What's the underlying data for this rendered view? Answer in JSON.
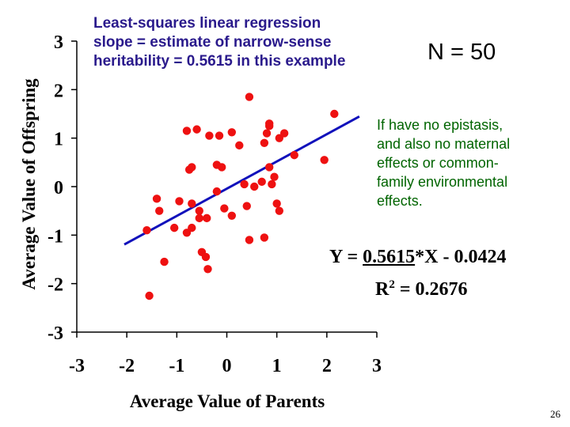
{
  "annotation": {
    "line1": "Least-squares linear regression",
    "line2": "slope = estimate of narrow-sense",
    "line3": "heritability = 0.5615 in this example"
  },
  "sample_size_label": "N = 50",
  "note": {
    "line1": "If have no epistasis,",
    "line2": "and also no maternal",
    "line3": "effects or common-",
    "line4": "family environmental",
    "line5": "effects."
  },
  "equation": {
    "prefix": "Y = ",
    "slope": "0.5615",
    "suffix": "*X - 0.0424",
    "r2_label": "R",
    "r2_exp": "2",
    "r2_value": " = 0.2676"
  },
  "page_number": "26",
  "colors": {
    "points": "#ee1111",
    "fit_line": "#1111bb",
    "annotation_text": "#2a1a8c",
    "note_text": "#006400"
  },
  "chart_data": {
    "type": "scatter",
    "xlabel": "Average Value of Parents",
    "ylabel": "Average Value of Offspring",
    "xlim": [
      -3,
      3
    ],
    "ylim": [
      -3,
      3
    ],
    "xticks": [
      "-3",
      "-2",
      "-1",
      "0",
      "1",
      "2",
      "3"
    ],
    "yticks": [
      "3",
      "2",
      "1",
      "0",
      "-1",
      "-2",
      "-3"
    ],
    "grid": false,
    "points": [
      [
        -1.55,
        -2.25
      ],
      [
        -1.6,
        -0.9
      ],
      [
        -1.4,
        -0.25
      ],
      [
        -1.35,
        -0.5
      ],
      [
        -1.25,
        -1.55
      ],
      [
        -1.05,
        -0.85
      ],
      [
        -0.95,
        -0.3
      ],
      [
        -0.8,
        1.15
      ],
      [
        -0.8,
        -0.95
      ],
      [
        -0.75,
        0.35
      ],
      [
        -0.7,
        0.4
      ],
      [
        -0.7,
        -0.35
      ],
      [
        -0.7,
        -0.85
      ],
      [
        -0.6,
        1.18
      ],
      [
        -0.55,
        -0.5
      ],
      [
        -0.55,
        -0.65
      ],
      [
        -0.5,
        -1.35
      ],
      [
        -0.42,
        -1.45
      ],
      [
        -0.38,
        -1.7
      ],
      [
        -0.4,
        -0.65
      ],
      [
        -0.35,
        1.05
      ],
      [
        -0.2,
        0.45
      ],
      [
        -0.2,
        -0.1
      ],
      [
        -0.15,
        1.05
      ],
      [
        -0.1,
        0.4
      ],
      [
        -0.05,
        -0.45
      ],
      [
        0.1,
        1.12
      ],
      [
        0.1,
        -0.6
      ],
      [
        0.25,
        0.85
      ],
      [
        0.35,
        0.05
      ],
      [
        0.4,
        -0.4
      ],
      [
        0.45,
        1.85
      ],
      [
        0.45,
        -1.1
      ],
      [
        0.55,
        0.0
      ],
      [
        0.7,
        0.1
      ],
      [
        0.75,
        0.9
      ],
      [
        0.75,
        -1.05
      ],
      [
        0.8,
        1.1
      ],
      [
        0.85,
        1.25
      ],
      [
        0.85,
        1.3
      ],
      [
        0.85,
        0.4
      ],
      [
        0.9,
        0.05
      ],
      [
        0.95,
        0.2
      ],
      [
        1.0,
        -0.35
      ],
      [
        1.05,
        1.0
      ],
      [
        1.15,
        1.1
      ],
      [
        1.05,
        -0.5
      ],
      [
        1.35,
        0.65
      ],
      [
        1.95,
        0.55
      ],
      [
        2.15,
        1.5
      ]
    ],
    "fit_line": {
      "slope": 0.5615,
      "intercept": -0.0424,
      "x_range": [
        -2.05,
        2.65
      ]
    }
  }
}
